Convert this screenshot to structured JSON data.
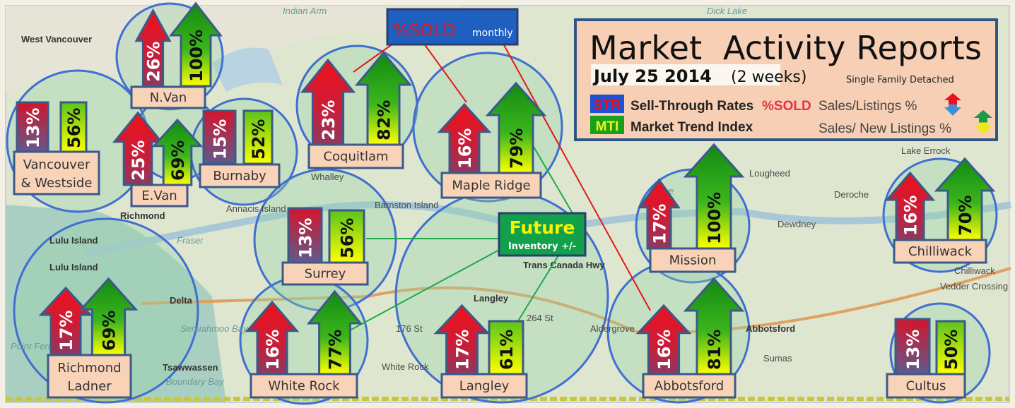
{
  "legend": {
    "title": "Market  Activity Reports",
    "date": "July 25 2014",
    "period": "(2 weeks)",
    "segment": "Single Family Detached",
    "str_badge": "STR",
    "str_name": "Sell-Through Rates",
    "str_sold": "%SOLD",
    "str_formula": "Sales/Listings %",
    "mti_badge": "MTI",
    "mti_name": "Market Trend Index",
    "mti_formula": "Sales/ New Listings %"
  },
  "callouts": {
    "sold_main": "%SOLD",
    "sold_sub": "monthly",
    "future_main": "Future",
    "future_sub": "Inventory +/-"
  },
  "colors": {
    "str_top": "#e8121e",
    "str_bottom": "#7a4a7a",
    "mti_top": "#1a8a1a",
    "mti_bottom": "#ffff00",
    "label_fill": "#f9d3b8",
    "frame": "#3b5a8a",
    "circle": "#3f6fd0"
  },
  "regions": [
    {
      "name": "N.Van",
      "str": "26%",
      "str_arrow": true,
      "mti": "100%",
      "mti_arrow": true
    },
    {
      "name": "Vancouver & Westside",
      "name_lines": [
        "Vancouver",
        "& Westside"
      ],
      "str": "13%",
      "str_arrow": false,
      "mti": "56%",
      "mti_arrow": false
    },
    {
      "name": "E.Van",
      "str": "25%",
      "str_arrow": true,
      "mti": "69%",
      "mti_arrow": true
    },
    {
      "name": "Burnaby",
      "str": "15%",
      "str_arrow": false,
      "mti": "52%",
      "mti_arrow": false
    },
    {
      "name": "Coquitlam",
      "str": "23%",
      "str_arrow": true,
      "mti": "82%",
      "mti_arrow": true
    },
    {
      "name": "Maple Ridge",
      "str": "16%",
      "str_arrow": true,
      "mti": "79%",
      "mti_arrow": true
    },
    {
      "name": "Mission",
      "str": "17%",
      "str_arrow": true,
      "mti": "100%",
      "mti_arrow": true
    },
    {
      "name": "Chilliwack",
      "str": "16%",
      "str_arrow": true,
      "mti": "70%",
      "mti_arrow": true
    },
    {
      "name": "Surrey",
      "str": "13%",
      "str_arrow": false,
      "mti": "56%",
      "mti_arrow": false
    },
    {
      "name": "Richmond Ladner",
      "name_lines": [
        "Richmond",
        "Ladner"
      ],
      "str": "17%",
      "str_arrow": true,
      "mti": "69%",
      "mti_arrow": true
    },
    {
      "name": "White Rock",
      "str": "16%",
      "str_arrow": true,
      "mti": "77%",
      "mti_arrow": true
    },
    {
      "name": "Langley",
      "str": "17%",
      "str_arrow": true,
      "mti": "61%",
      "mti_arrow": false
    },
    {
      "name": "Abbotsford",
      "str": "16%",
      "str_arrow": true,
      "mti": "81%",
      "mti_arrow": true
    },
    {
      "name": "Cultus",
      "str": "13%",
      "str_arrow": false,
      "mti": "50%",
      "mti_arrow": false
    }
  ],
  "map_labels": [
    "West Vancouver",
    "Indian Arm",
    "Dick Lake",
    "Richmond",
    "Lulu Island",
    "Lulu Island",
    "Fraser",
    "Delta",
    "Tsawwassen",
    "Boundary Bay",
    "Point Ferry",
    "Semiahmoo Bay",
    "White Rock",
    "Langley",
    "Trans Canada Hwy",
    "176 St",
    "264 St",
    "Aldergrove",
    "Abbotsford",
    "Sumas",
    "Deroche",
    "Dewdney",
    "Lake Errock",
    "Vedder Crossing",
    "Whalley",
    "Barnston Island",
    "Stave",
    "Lougheed",
    "Chilliwack",
    "Annacis Island"
  ]
}
